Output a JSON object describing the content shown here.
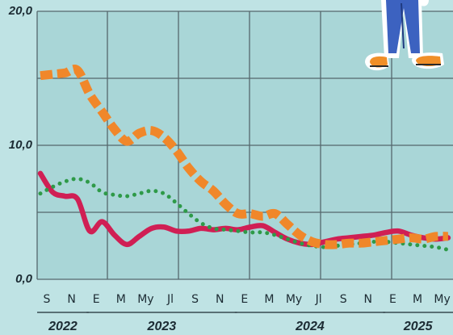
{
  "chart_data": {
    "type": "line",
    "title": "",
    "xlabel": "",
    "ylabel": "",
    "ylim": [
      0,
      20
    ],
    "yticks": [
      {
        "value": 0,
        "label": "0,0"
      },
      {
        "value": 10,
        "label": "10,0"
      },
      {
        "value": 20,
        "label": "20,0"
      }
    ],
    "grid": true,
    "months": [
      "2022-09",
      "2022-10",
      "2022-11",
      "2022-12",
      "2023-01",
      "2023-02",
      "2023-03",
      "2023-04",
      "2023-05",
      "2023-06",
      "2023-07",
      "2023-08",
      "2023-09",
      "2023-10",
      "2023-11",
      "2023-12",
      "2024-01",
      "2024-02",
      "2024-03",
      "2024-04",
      "2024-05",
      "2024-06",
      "2024-07",
      "2024-08",
      "2024-09",
      "2024-10",
      "2024-11",
      "2024-12",
      "2025-01",
      "2025-02",
      "2025-03",
      "2025-04",
      "2025-05",
      "2025-06"
    ],
    "x_tick_labels": [
      {
        "month": "2022-09",
        "label": "S"
      },
      {
        "month": "2022-11",
        "label": "N"
      },
      {
        "month": "2023-01",
        "label": "E"
      },
      {
        "month": "2023-03",
        "label": "M"
      },
      {
        "month": "2023-05",
        "label": "My"
      },
      {
        "month": "2023-07",
        "label": "Jl"
      },
      {
        "month": "2023-09",
        "label": "S"
      },
      {
        "month": "2023-11",
        "label": "N"
      },
      {
        "month": "2024-01",
        "label": "E"
      },
      {
        "month": "2024-03",
        "label": "M"
      },
      {
        "month": "2024-05",
        "label": "My"
      },
      {
        "month": "2024-07",
        "label": "Jl"
      },
      {
        "month": "2024-09",
        "label": "S"
      },
      {
        "month": "2024-11",
        "label": "N"
      },
      {
        "month": "2025-01",
        "label": "E"
      },
      {
        "month": "2025-03",
        "label": "M"
      },
      {
        "month": "2025-05",
        "label": "My"
      }
    ],
    "years": [
      {
        "label": "2022",
        "from": "2022-09",
        "to": "2022-12"
      },
      {
        "label": "2023",
        "from": "2023-01",
        "to": "2023-12"
      },
      {
        "label": "2024",
        "from": "2024-01",
        "to": "2024-12"
      },
      {
        "label": "2025",
        "from": "2025-01",
        "to": "2025-06"
      }
    ],
    "series": [
      {
        "color": "#d01f54",
        "style": "solid",
        "values": [
          7.9,
          6.5,
          6.2,
          6.0,
          3.6,
          4.3,
          3.3,
          2.6,
          3.2,
          3.8,
          3.9,
          3.6,
          3.6,
          3.8,
          3.7,
          3.8,
          3.7,
          3.9,
          4.0,
          3.5,
          3.0,
          2.7,
          2.6,
          2.8,
          3.0,
          3.1,
          3.2,
          3.3,
          3.5,
          3.6,
          3.3,
          3.1,
          3.0,
          3.1
        ]
      },
      {
        "color": "#f0872a",
        "style": "dashed",
        "values": [
          15.2,
          15.3,
          15.4,
          15.6,
          13.8,
          12.5,
          11.2,
          10.3,
          10.9,
          11.1,
          10.6,
          9.6,
          8.3,
          7.3,
          6.6,
          5.6,
          4.9,
          4.9,
          4.7,
          4.9,
          4.1,
          3.3,
          2.8,
          2.6,
          2.6,
          2.7,
          2.7,
          2.8,
          2.9,
          3.0,
          3.1,
          3.0,
          3.2,
          3.2
        ]
      },
      {
        "color": "#2e9a48",
        "style": "dotted",
        "values": [
          6.4,
          6.9,
          7.3,
          7.5,
          7.2,
          6.5,
          6.3,
          6.2,
          6.4,
          6.6,
          6.4,
          5.7,
          4.9,
          4.2,
          3.8,
          3.7,
          3.6,
          3.5,
          3.5,
          3.3,
          3.0,
          2.7,
          2.5,
          2.4,
          2.5,
          2.6,
          2.7,
          2.8,
          2.8,
          2.7,
          2.6,
          2.5,
          2.4,
          2.2
        ]
      }
    ]
  }
}
